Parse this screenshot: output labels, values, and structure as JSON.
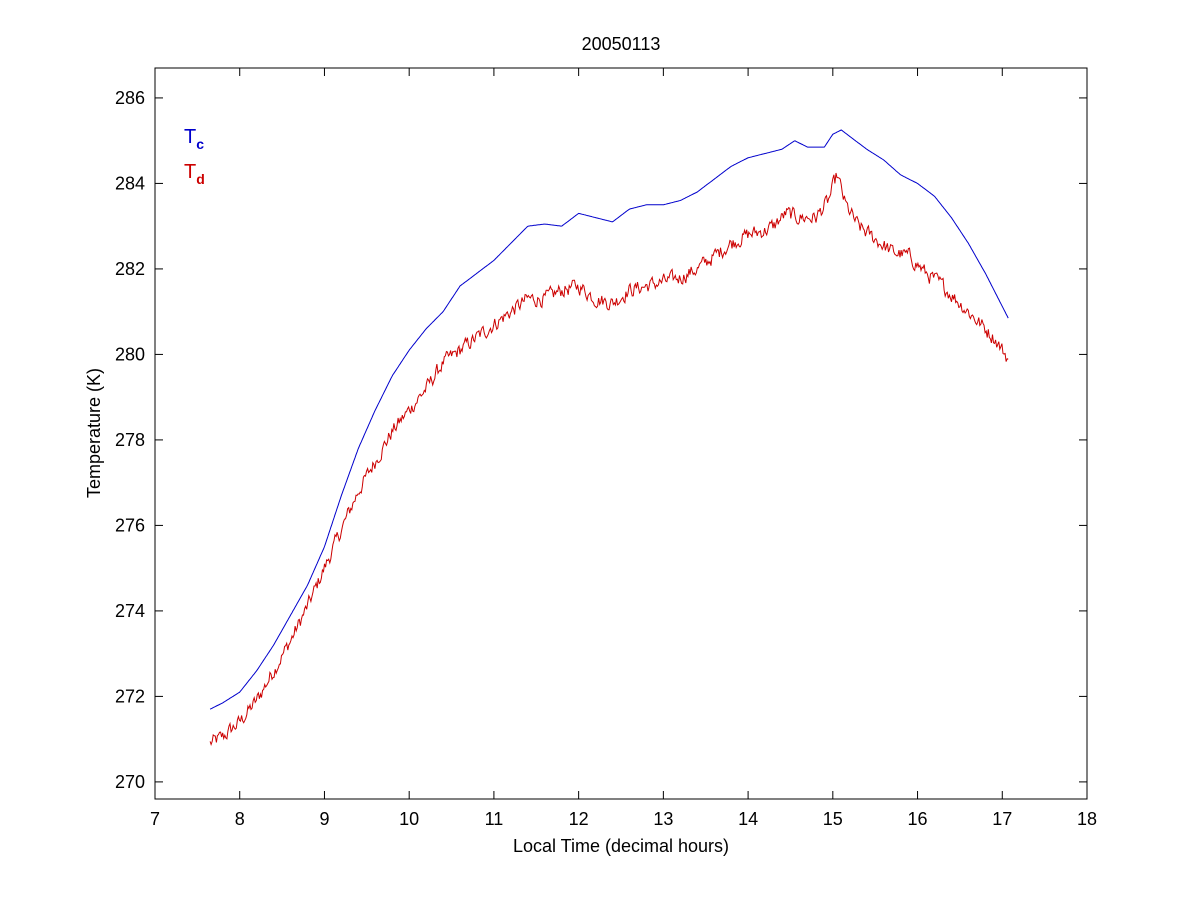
{
  "chart_data": {
    "type": "line",
    "title": "20050113",
    "xlabel": "Local Time (decimal hours)",
    "ylabel": "Temperature (K)",
    "xlim": [
      7,
      18
    ],
    "ylim": [
      269.6,
      286.7
    ],
    "xticks": [
      7,
      8,
      9,
      10,
      11,
      12,
      13,
      14,
      15,
      16,
      17,
      18
    ],
    "yticks": [
      270,
      272,
      274,
      276,
      278,
      280,
      282,
      284,
      286
    ],
    "grid": false,
    "legend": {
      "placement": "top-left"
    },
    "series": [
      {
        "name": "Tc",
        "legend_main": "T",
        "legend_sub": "c",
        "color": "#0000cc",
        "noise": 0,
        "x": [
          7.65,
          7.8,
          8.0,
          8.2,
          8.4,
          8.6,
          8.8,
          9.0,
          9.2,
          9.4,
          9.6,
          9.8,
          10.0,
          10.2,
          10.4,
          10.6,
          10.8,
          11.0,
          11.2,
          11.4,
          11.6,
          11.8,
          12.0,
          12.2,
          12.4,
          12.6,
          12.8,
          13.0,
          13.2,
          13.4,
          13.6,
          13.8,
          14.0,
          14.2,
          14.4,
          14.55,
          14.7,
          14.9,
          15.0,
          15.1,
          15.2,
          15.4,
          15.6,
          15.8,
          16.0,
          16.2,
          16.4,
          16.6,
          16.8,
          17.07
        ],
        "y": [
          271.7,
          271.85,
          272.1,
          272.6,
          273.2,
          273.9,
          274.6,
          275.5,
          276.7,
          277.8,
          278.7,
          279.5,
          280.1,
          280.6,
          281.0,
          281.6,
          281.9,
          282.2,
          282.6,
          283.0,
          283.05,
          283.0,
          283.3,
          283.2,
          283.1,
          283.4,
          283.5,
          283.5,
          283.6,
          283.8,
          284.1,
          284.4,
          284.6,
          284.7,
          284.8,
          285.0,
          284.85,
          284.85,
          285.15,
          285.25,
          285.1,
          284.8,
          284.55,
          284.2,
          284.0,
          283.7,
          283.2,
          282.6,
          281.9,
          280.85
        ]
      },
      {
        "name": "Td",
        "legend_main": "T",
        "legend_sub": "d",
        "color": "#cc0000",
        "noise": 0.28,
        "x": [
          7.65,
          7.8,
          8.0,
          8.2,
          8.4,
          8.6,
          8.8,
          9.0,
          9.2,
          9.4,
          9.6,
          9.8,
          10.0,
          10.2,
          10.4,
          10.6,
          10.8,
          11.0,
          11.2,
          11.4,
          11.6,
          11.8,
          12.0,
          12.2,
          12.4,
          12.6,
          12.8,
          13.0,
          13.2,
          13.4,
          13.6,
          13.8,
          14.0,
          14.2,
          14.3,
          14.45,
          14.6,
          14.8,
          14.95,
          15.05,
          15.15,
          15.3,
          15.5,
          15.7,
          15.9,
          16.1,
          16.3,
          16.5,
          16.7,
          16.9,
          17.07
        ],
        "y": [
          270.9,
          271.05,
          271.4,
          271.9,
          272.6,
          273.3,
          274.1,
          275.0,
          275.9,
          276.8,
          277.5,
          278.2,
          278.7,
          279.2,
          279.8,
          280.1,
          280.4,
          280.7,
          281.0,
          281.3,
          281.3,
          281.5,
          281.6,
          281.3,
          281.2,
          281.5,
          281.6,
          281.7,
          281.8,
          282.0,
          282.3,
          282.6,
          282.8,
          282.9,
          283.0,
          283.3,
          283.2,
          283.2,
          283.6,
          284.2,
          283.5,
          283.0,
          282.7,
          282.4,
          282.3,
          281.9,
          281.6,
          281.2,
          280.8,
          280.4,
          279.9
        ]
      }
    ]
  }
}
